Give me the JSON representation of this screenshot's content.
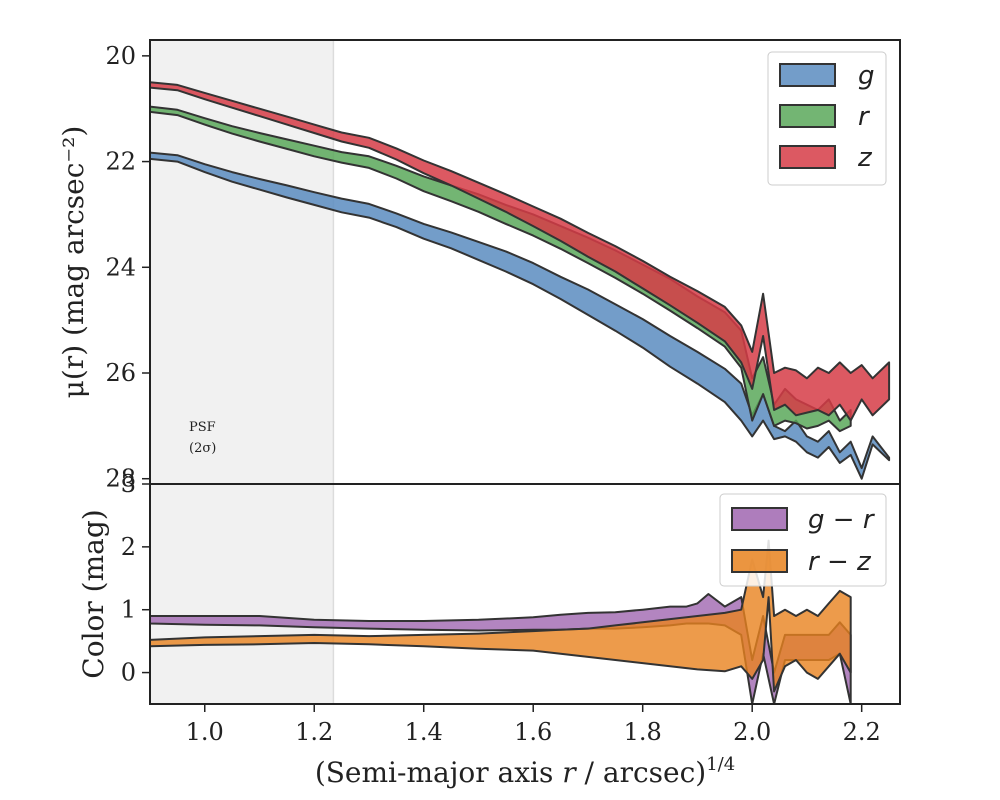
{
  "chart_data": [
    {
      "type": "area",
      "panel": "top",
      "ylabel": "μ(r) (mag arcsec⁻²)",
      "xlim": [
        0.9,
        2.27
      ],
      "ylim": [
        28.1,
        19.7
      ],
      "y_inverted": true,
      "yticks": [
        20,
        22,
        24,
        26,
        28
      ],
      "psf_region": {
        "x_max": 1.235,
        "label_line1": "PSF",
        "label_line2": "(2σ)"
      },
      "legend": {
        "position": "top-right",
        "entries": [
          "g",
          "r",
          "z"
        ]
      },
      "colors": {
        "g": "#5b8cbf",
        "r": "#5aa85a",
        "z": "#d63c46"
      },
      "series": [
        {
          "name": "g",
          "x": [
            0.9,
            0.95,
            1.0,
            1.05,
            1.1,
            1.15,
            1.2,
            1.25,
            1.3,
            1.35,
            1.4,
            1.45,
            1.5,
            1.55,
            1.6,
            1.65,
            1.7,
            1.75,
            1.8,
            1.85,
            1.9,
            1.95,
            1.98,
            2.0,
            2.02,
            2.04,
            2.06,
            2.08,
            2.1,
            2.12,
            2.14,
            2.16,
            2.18,
            2.2,
            2.22,
            2.25
          ],
          "lower": [
            21.83,
            21.88,
            22.05,
            22.2,
            22.33,
            22.45,
            22.58,
            22.7,
            22.8,
            22.98,
            23.18,
            23.34,
            23.52,
            23.7,
            23.92,
            24.18,
            24.42,
            24.7,
            24.98,
            25.3,
            25.6,
            25.92,
            26.2,
            26.8,
            26.4,
            27.0,
            27.1,
            26.9,
            27.2,
            27.3,
            27.1,
            27.5,
            27.3,
            27.8,
            27.2,
            27.6
          ],
          "upper": [
            21.95,
            22.0,
            22.2,
            22.38,
            22.53,
            22.68,
            22.82,
            22.96,
            23.06,
            23.24,
            23.46,
            23.64,
            23.86,
            24.08,
            24.32,
            24.6,
            24.9,
            25.2,
            25.52,
            25.88,
            26.2,
            26.55,
            26.9,
            27.2,
            26.9,
            27.25,
            27.2,
            27.3,
            27.5,
            27.6,
            27.4,
            27.7,
            27.55,
            28.0,
            27.35,
            27.65
          ]
        },
        {
          "name": "r",
          "x": [
            0.9,
            0.95,
            1.0,
            1.05,
            1.1,
            1.15,
            1.2,
            1.25,
            1.3,
            1.35,
            1.4,
            1.45,
            1.5,
            1.55,
            1.6,
            1.65,
            1.7,
            1.75,
            1.8,
            1.85,
            1.9,
            1.95,
            1.98,
            2.0,
            2.02,
            2.04,
            2.06,
            2.08,
            2.1,
            2.12,
            2.14,
            2.16,
            2.18
          ],
          "lower": [
            20.96,
            21.02,
            21.18,
            21.33,
            21.46,
            21.58,
            21.7,
            21.82,
            21.9,
            22.08,
            22.28,
            22.45,
            22.62,
            22.82,
            23.0,
            23.22,
            23.44,
            23.68,
            23.95,
            24.22,
            24.55,
            24.85,
            25.2,
            26.1,
            25.7,
            26.6,
            26.3,
            26.5,
            26.6,
            26.7,
            26.5,
            26.9,
            26.7
          ],
          "upper": [
            21.06,
            21.12,
            21.3,
            21.47,
            21.62,
            21.76,
            21.9,
            22.02,
            22.12,
            22.32,
            22.56,
            22.75,
            22.95,
            23.18,
            23.4,
            23.65,
            23.92,
            24.2,
            24.5,
            24.82,
            25.15,
            25.5,
            25.9,
            26.9,
            26.4,
            27.0,
            26.9,
            26.95,
            27.05,
            27.0,
            26.9,
            27.1,
            27.0
          ]
        },
        {
          "name": "z",
          "x": [
            0.9,
            0.95,
            1.0,
            1.05,
            1.1,
            1.15,
            1.2,
            1.25,
            1.3,
            1.35,
            1.4,
            1.45,
            1.5,
            1.55,
            1.6,
            1.65,
            1.7,
            1.75,
            1.8,
            1.85,
            1.9,
            1.95,
            1.98,
            2.0,
            2.02,
            2.04,
            2.06,
            2.08,
            2.1,
            2.12,
            2.14,
            2.16,
            2.18,
            2.2,
            2.22,
            2.25
          ],
          "lower": [
            20.5,
            20.55,
            20.7,
            20.85,
            21.0,
            21.15,
            21.3,
            21.45,
            21.55,
            21.75,
            21.98,
            22.18,
            22.4,
            22.62,
            22.85,
            23.08,
            23.35,
            23.6,
            23.88,
            24.18,
            24.45,
            24.75,
            25.1,
            25.6,
            24.5,
            26.0,
            25.9,
            25.95,
            26.1,
            25.9,
            26.0,
            25.8,
            26.0,
            25.85,
            26.1,
            25.8
          ],
          "upper": [
            20.6,
            20.65,
            20.82,
            20.98,
            21.14,
            21.3,
            21.46,
            21.62,
            21.74,
            21.96,
            22.22,
            22.45,
            22.7,
            22.95,
            23.22,
            23.5,
            23.8,
            24.08,
            24.4,
            24.72,
            25.05,
            25.4,
            25.8,
            26.3,
            25.3,
            26.7,
            26.6,
            26.8,
            26.75,
            26.7,
            26.8,
            26.6,
            26.9,
            26.5,
            26.8,
            26.5
          ]
        }
      ]
    },
    {
      "type": "area",
      "panel": "bottom",
      "xlabel": "(Semi-major axis r / arcsec)^1/4",
      "xlabel_main": "(Semi-major axis ",
      "xlabel_var": "r",
      "xlabel_mid": " / arcsec)",
      "xlabel_exp": "1/4",
      "ylabel": "Color (mag)",
      "xlim": [
        0.9,
        2.27
      ],
      "ylim": [
        -0.5,
        3.0
      ],
      "yticks": [
        0,
        1,
        2,
        3
      ],
      "xticks": [
        1.0,
        1.2,
        1.4,
        1.6,
        1.8,
        2.0,
        2.2
      ],
      "legend": {
        "position": "top-right",
        "entries": [
          "g − r",
          "r − z"
        ]
      },
      "colors": {
        "g − r": "#a066b0",
        "r − z": "#e8821e"
      },
      "series": [
        {
          "name": "g − r",
          "x": [
            0.9,
            1.0,
            1.1,
            1.2,
            1.3,
            1.4,
            1.5,
            1.6,
            1.65,
            1.7,
            1.75,
            1.8,
            1.85,
            1.88,
            1.9,
            1.92,
            1.95,
            1.98,
            2.0,
            2.02,
            2.04,
            2.06,
            2.08,
            2.1,
            2.12,
            2.14,
            2.16,
            2.18
          ],
          "lower": [
            0.78,
            0.76,
            0.75,
            0.72,
            0.7,
            0.68,
            0.67,
            0.68,
            0.68,
            0.7,
            0.7,
            0.72,
            0.75,
            0.78,
            0.78,
            0.78,
            0.75,
            0.6,
            -0.5,
            0.3,
            -0.5,
            0.2,
            0.2,
            0.2,
            0.2,
            0.2,
            0.3,
            -0.5
          ],
          "upper": [
            0.9,
            0.9,
            0.9,
            0.84,
            0.82,
            0.82,
            0.84,
            0.88,
            0.92,
            0.95,
            0.96,
            1.0,
            1.05,
            1.05,
            1.1,
            1.25,
            1.05,
            1.2,
            0.2,
            0.9,
            0.0,
            0.6,
            0.6,
            0.6,
            0.6,
            0.6,
            0.8,
            0.6
          ]
        },
        {
          "name": "r − z",
          "x": [
            0.9,
            1.0,
            1.1,
            1.2,
            1.3,
            1.4,
            1.5,
            1.6,
            1.65,
            1.7,
            1.75,
            1.8,
            1.85,
            1.9,
            1.95,
            1.98,
            2.0,
            2.02,
            2.03,
            2.04,
            2.06,
            2.08,
            2.1,
            2.12,
            2.14,
            2.16,
            2.18
          ],
          "lower": [
            0.42,
            0.44,
            0.45,
            0.47,
            0.45,
            0.42,
            0.38,
            0.35,
            0.3,
            0.25,
            0.2,
            0.15,
            0.1,
            0.05,
            0.02,
            0.1,
            -0.1,
            0.2,
            1.2,
            -0.3,
            0.1,
            0.2,
            0.0,
            -0.1,
            0.1,
            0.3,
            0.0
          ],
          "upper": [
            0.52,
            0.56,
            0.58,
            0.6,
            0.58,
            0.6,
            0.62,
            0.66,
            0.68,
            0.7,
            0.75,
            0.8,
            0.85,
            0.9,
            0.95,
            1.0,
            1.8,
            1.2,
            2.1,
            0.9,
            1.0,
            0.9,
            1.0,
            0.9,
            1.1,
            1.3,
            1.2
          ]
        }
      ]
    }
  ]
}
